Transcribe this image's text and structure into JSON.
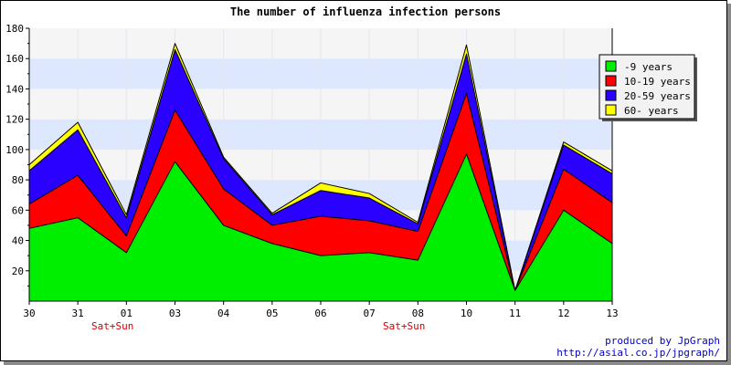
{
  "chart_data": {
    "type": "area",
    "stacked": true,
    "title": "The number of influenza infection persons",
    "categories": [
      "30",
      "31",
      "01",
      "03",
      "04",
      "05",
      "06",
      "07",
      "08",
      "10",
      "11",
      "12",
      "13"
    ],
    "weekend_labels": [
      {
        "category": "31",
        "label": "Sat+Sun"
      },
      {
        "category": "07",
        "label": "Sat+Sun"
      }
    ],
    "series": [
      {
        "name": "-9 years",
        "color": "#00ee00",
        "values": [
          48,
          55,
          32,
          92,
          50,
          38,
          30,
          32,
          27,
          97,
          7,
          60,
          38
        ]
      },
      {
        "name": "10-19 years",
        "color": "#ff0000",
        "values": [
          16,
          28,
          11,
          34,
          24,
          12,
          26,
          21,
          19,
          40,
          0,
          27,
          27
        ]
      },
      {
        "name": "20-59 years",
        "color": "#2a00ff",
        "values": [
          22,
          30,
          12,
          40,
          20,
          7,
          17,
          15,
          5,
          26,
          0,
          16,
          19
        ]
      },
      {
        "name": "60- years",
        "color": "#ffff00",
        "values": [
          4,
          5,
          2,
          4,
          1,
          1,
          5,
          3,
          1,
          6,
          0,
          2,
          2
        ]
      }
    ],
    "yticks": [
      20,
      40,
      60,
      80,
      100,
      120,
      140,
      160,
      180
    ],
    "ylim": [
      0,
      180
    ],
    "grid": "horizontal bands",
    "legend_position": "top-right",
    "band_colors": [
      "#f5f5f5",
      "#dde8ff"
    ]
  },
  "credit": {
    "line1": "produced by JpGraph",
    "line2": "http://asial.co.jp/jpgraph/"
  }
}
